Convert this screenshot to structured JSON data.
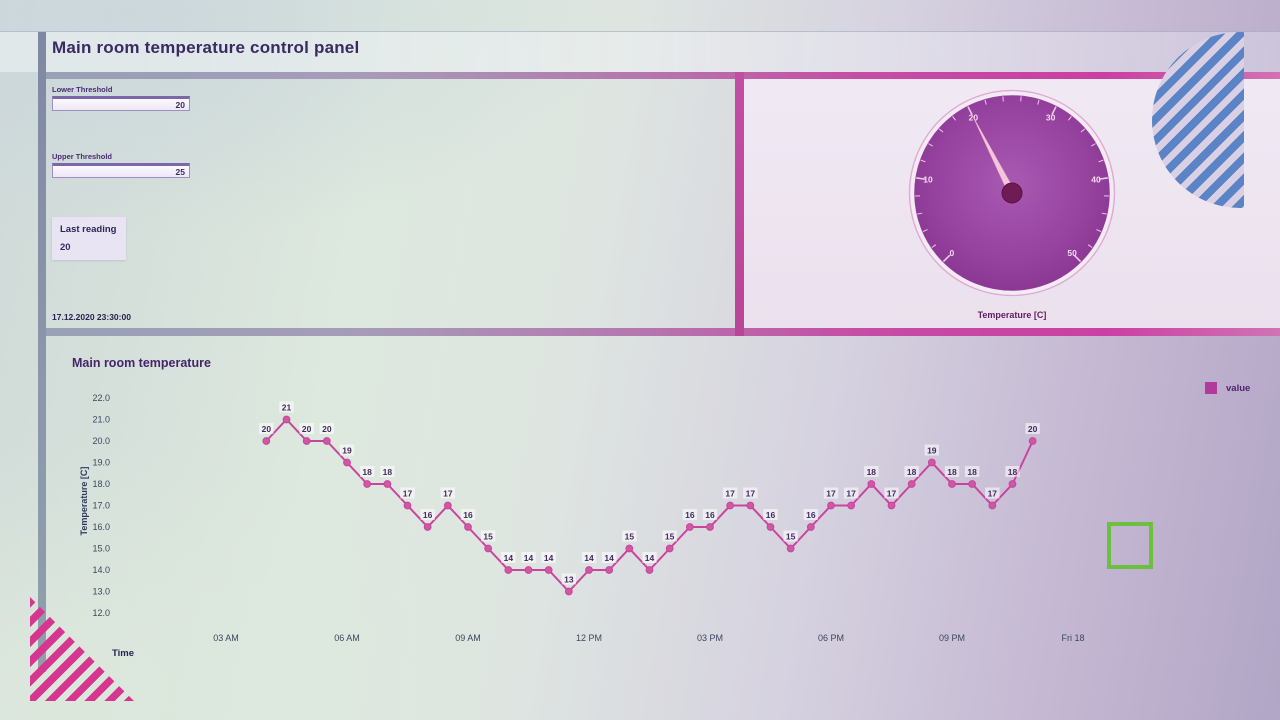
{
  "header": {
    "title": "Main room temperature control panel"
  },
  "controls": {
    "lower_threshold": {
      "label": "Lower Threshold",
      "value": "20"
    },
    "upper_threshold": {
      "label": "Upper Threshold",
      "value": "25"
    },
    "last_reading": {
      "label": "Last reading",
      "value": "20"
    },
    "timestamp": "17.12.2020 23:30:00"
  },
  "gauge": {
    "caption": "Temperature [C]",
    "min": 0,
    "max": 50,
    "value": 20,
    "tick_labels": [
      0,
      10,
      20,
      30,
      40,
      50
    ],
    "start_angle": 225,
    "sweep": 270,
    "colors": {
      "dial_center": "#a85ab2",
      "dial_edge": "#84308d",
      "needle": "#f4c6da",
      "hub": "#6f1c55",
      "ticks": "#eec9e5",
      "ring": "#dda8d2"
    }
  },
  "chart_data": {
    "type": "line",
    "title": "Main room temperature",
    "ylabel": "Temperature [C]",
    "xlabel": "Time",
    "legend": {
      "label": "value",
      "color": "#b23a9c"
    },
    "ylim": [
      12.0,
      22.0
    ],
    "ytick_step": 1.0,
    "y_tick_labels": [
      "22.0",
      "21.0",
      "20.0",
      "19.0",
      "18.0",
      "17.0",
      "16.0",
      "15.0",
      "14.0",
      "13.0",
      "12.0"
    ],
    "x_ticks": [
      {
        "label": "03 AM",
        "hour": 3
      },
      {
        "label": "06 AM",
        "hour": 6
      },
      {
        "label": "09 AM",
        "hour": 9
      },
      {
        "label": "12 PM",
        "hour": 12
      },
      {
        "label": "03 PM",
        "hour": 15
      },
      {
        "label": "06 PM",
        "hour": 18
      },
      {
        "label": "09 PM",
        "hour": 21
      },
      {
        "label": "Fri 18",
        "hour": 24
      }
    ],
    "series": [
      {
        "name": "value",
        "start_hour": 4.0,
        "step_hours": 0.5,
        "values": [
          20,
          21,
          20,
          20,
          19,
          18,
          18,
          17,
          16,
          17,
          16,
          15,
          14,
          14,
          14,
          13,
          14,
          14,
          15,
          14,
          15,
          16,
          16,
          17,
          17,
          16,
          15,
          16,
          17,
          17,
          18,
          17,
          18,
          19,
          18,
          18,
          17,
          18,
          20
        ]
      }
    ],
    "line_color": "#c9449c",
    "point_color": "#ce58a4",
    "show_point_labels": true,
    "grid": false,
    "legend_position": "top-right"
  },
  "theme": {
    "accent_magenta": "#ca40a2",
    "accent_grayblue": "#99a1b6",
    "stripe_blue": "#5b84c6",
    "stripe_pink": "#d6368f",
    "green_box": "#6cbf3f"
  }
}
